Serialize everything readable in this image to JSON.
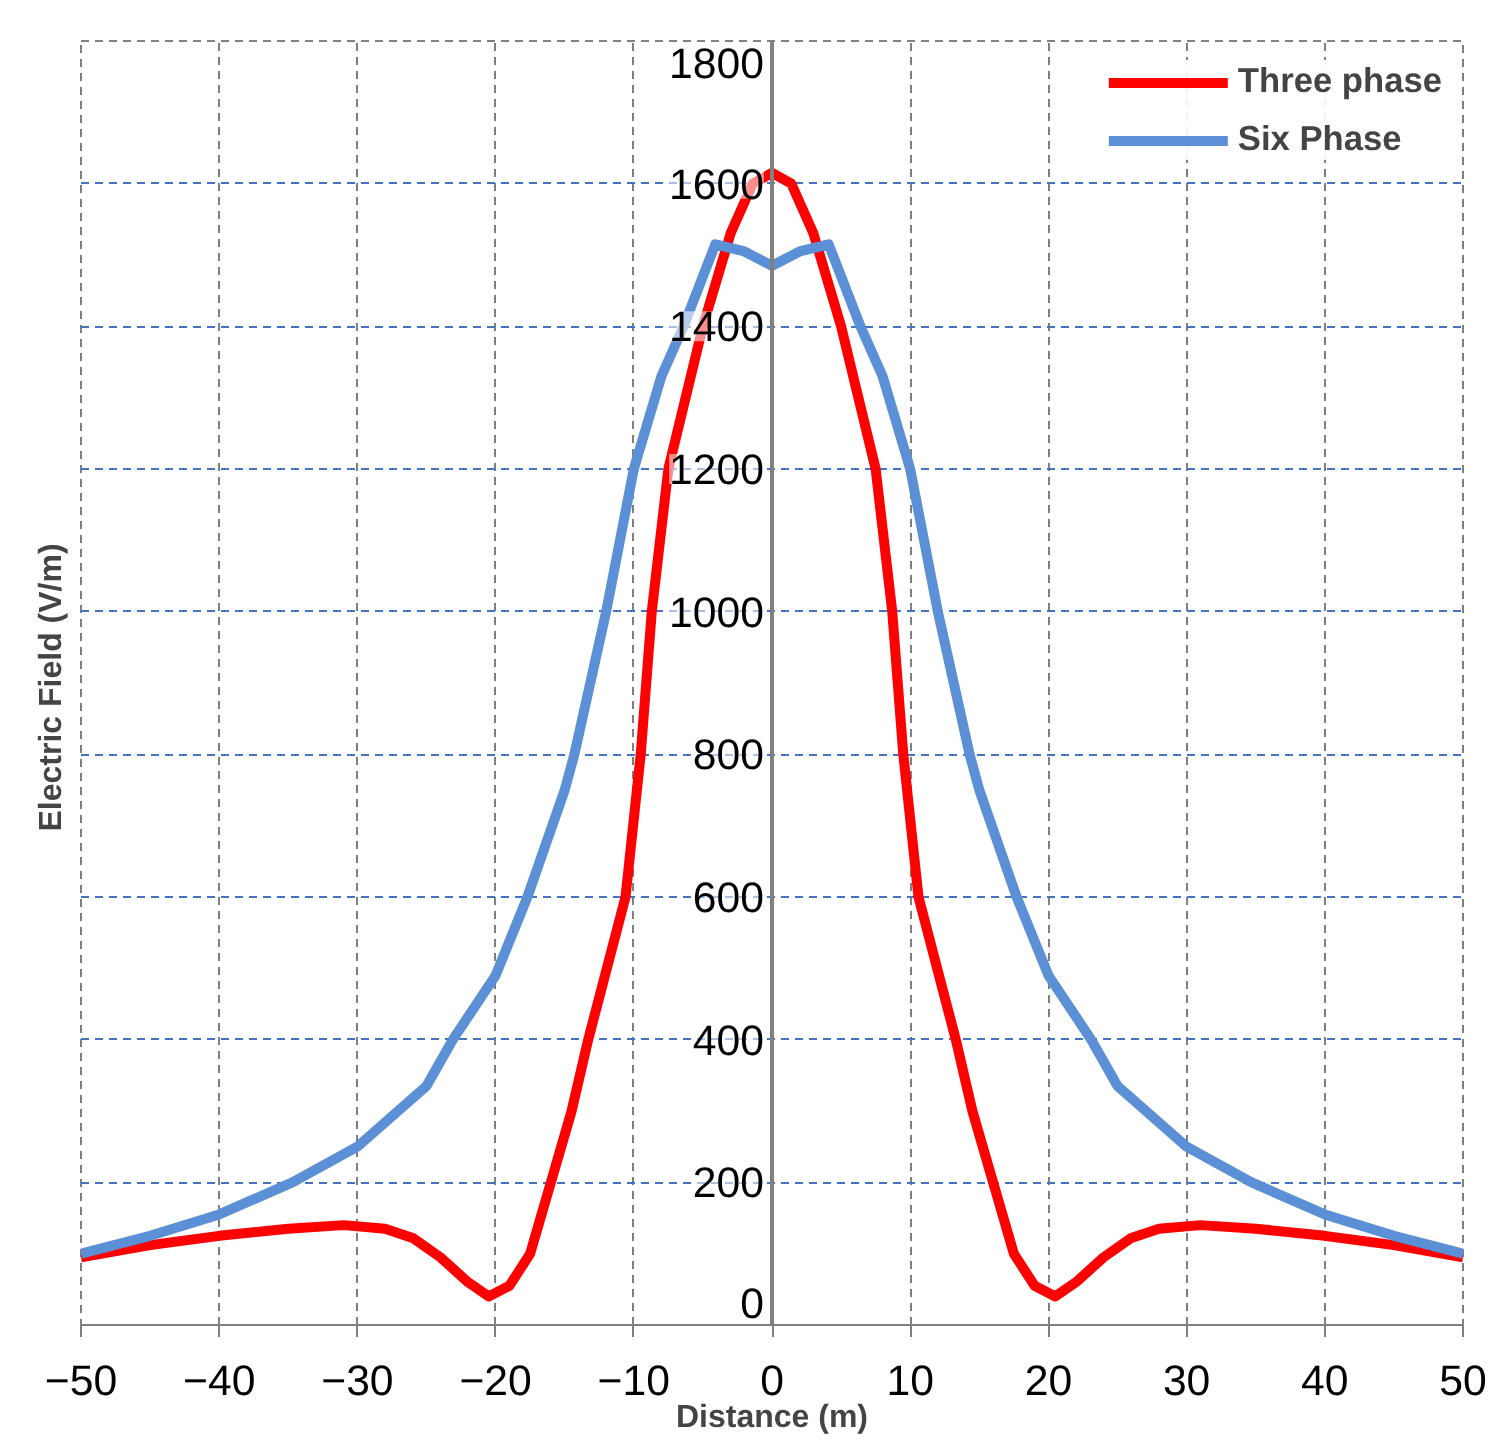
{
  "chart_data": {
    "type": "line",
    "xlabel": "Distance (m)",
    "ylabel": "Electric Field  (V/m)",
    "xlim": [
      -50,
      50
    ],
    "xticks": [
      -50,
      -40,
      -30,
      -20,
      -10,
      0,
      10,
      20,
      30,
      40,
      50
    ],
    "ylim": [
      0,
      1800
    ],
    "yticks": [
      0,
      200,
      400,
      600,
      800,
      1000,
      1200,
      1400,
      1600,
      1800
    ],
    "grid": true,
    "legend": "top right",
    "line_style": "solid",
    "marker": "none",
    "series": [
      {
        "name": "Three phase",
        "color": "#ff0000",
        "x": [
          -50,
          -45,
          -40,
          -35,
          -31,
          -28,
          -26,
          -24,
          -22,
          -20.5,
          -19,
          -17.5,
          -16,
          -14.5,
          -13.3,
          -10.6,
          -9.5,
          -8.7,
          -7.5,
          -5,
          -3,
          -1.4,
          0,
          1.4,
          3,
          5,
          7.5,
          8.7,
          9.5,
          10.6,
          13.3,
          14.5,
          16,
          17.5,
          19,
          20.5,
          22,
          24,
          26,
          28,
          31,
          35,
          40,
          45,
          50
        ],
        "values": [
          95,
          112,
          125,
          135,
          140,
          135,
          122,
          95,
          60,
          40,
          55,
          100,
          200,
          300,
          400,
          600,
          800,
          1000,
          1200,
          1400,
          1530,
          1600,
          1615,
          1600,
          1530,
          1400,
          1200,
          1000,
          800,
          600,
          400,
          300,
          200,
          100,
          55,
          40,
          60,
          95,
          122,
          135,
          140,
          135,
          125,
          112,
          95
        ]
      },
      {
        "name": "Six Phase",
        "color": "#5b8fd6",
        "x": [
          -50,
          -45,
          -40,
          -34.7,
          -30,
          -25,
          -23.1,
          -20,
          -17.7,
          -15,
          -14.3,
          -12,
          -10,
          -8,
          -6.4,
          -4.1,
          -2,
          0,
          2,
          4.1,
          6.4,
          8,
          10,
          12,
          14.3,
          15,
          17.7,
          20,
          23.1,
          25,
          30,
          34.7,
          40,
          45,
          50
        ],
        "values": [
          100,
          125,
          155,
          200,
          250,
          335,
          400,
          490,
          600,
          750,
          800,
          1000,
          1200,
          1330,
          1400,
          1515,
          1505,
          1485,
          1505,
          1515,
          1400,
          1330,
          1200,
          1000,
          800,
          750,
          600,
          490,
          400,
          335,
          250,
          200,
          155,
          125,
          100
        ]
      }
    ]
  }
}
